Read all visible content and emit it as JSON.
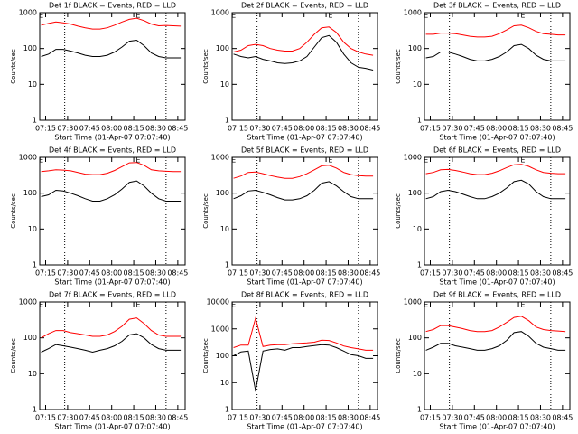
{
  "chart_data": [
    {
      "type": "line",
      "title": "Det 1f BLACK = Events, RED = LLD",
      "xlabel": "Start Time (01-Apr-07 07:07:40)",
      "ylabel": "Counts/sec",
      "log_y": true,
      "x": [
        "07:12",
        "07:17",
        "07:22",
        "07:27",
        "07:32",
        "07:37",
        "07:42",
        "07:47",
        "07:52",
        "07:57",
        "08:02",
        "08:07",
        "08:12",
        "08:17",
        "08:22",
        "08:27",
        "08:32",
        "08:37",
        "08:42",
        "08:47"
      ],
      "xlim": [
        "07:11",
        "08:50"
      ],
      "xticks": [
        "07:15",
        "07:30",
        "07:45",
        "08:00",
        "08:15",
        "08:30",
        "08:45"
      ],
      "ylim": [
        1,
        1000
      ],
      "yticks": [
        1,
        10,
        100,
        1000
      ],
      "vlines": [
        "07:28",
        "08:37"
      ],
      "annotations": [
        {
          "x": "07:12",
          "text": "E"
        },
        {
          "x": "08:18",
          "text": "E"
        }
      ],
      "series": [
        {
          "color": "#000000",
          "values": [
            60,
            70,
            95,
            95,
            85,
            75,
            65,
            60,
            60,
            65,
            80,
            110,
            160,
            170,
            120,
            75,
            60,
            55,
            55,
            55
          ]
        },
        {
          "color": "#ff0000",
          "values": [
            450,
            500,
            550,
            520,
            480,
            420,
            380,
            350,
            350,
            380,
            450,
            550,
            650,
            700,
            600,
            480,
            430,
            440,
            430,
            420
          ]
        }
      ]
    },
    {
      "type": "line",
      "title": "Det 2f BLACK = Events, RED = LLD",
      "xlabel": "Start Time (01-Apr-07 07:07:40)",
      "ylabel": "Counts/sec",
      "log_y": true,
      "x": [
        "07:12",
        "07:17",
        "07:22",
        "07:27",
        "07:32",
        "07:37",
        "07:42",
        "07:47",
        "07:52",
        "07:57",
        "08:02",
        "08:07",
        "08:12",
        "08:17",
        "08:22",
        "08:27",
        "08:32",
        "08:37",
        "08:42",
        "08:47"
      ],
      "xlim": [
        "07:11",
        "08:50"
      ],
      "xticks": [
        "07:15",
        "07:30",
        "07:45",
        "08:00",
        "08:15",
        "08:30",
        "08:45"
      ],
      "ylim": [
        1,
        1000
      ],
      "yticks": [
        1,
        10,
        100,
        1000
      ],
      "vlines": [
        "07:28",
        "08:37"
      ],
      "annotations": [
        {
          "x": "07:12",
          "text": "E"
        },
        {
          "x": "08:18",
          "text": "E"
        }
      ],
      "series": [
        {
          "color": "#000000",
          "values": [
            70,
            60,
            55,
            60,
            50,
            45,
            40,
            38,
            40,
            45,
            60,
            110,
            200,
            230,
            150,
            70,
            40,
            30,
            28,
            25
          ]
        },
        {
          "color": "#ff0000",
          "values": [
            80,
            90,
            120,
            130,
            120,
            100,
            90,
            85,
            85,
            100,
            150,
            250,
            380,
            400,
            280,
            150,
            100,
            80,
            70,
            65
          ]
        }
      ]
    },
    {
      "type": "line",
      "title": "Det 3f BLACK = Events, RED = LLD",
      "xlabel": "Start Time (01-Apr-07 07:07:40)",
      "ylabel": "Counts/sec",
      "log_y": true,
      "x": [
        "07:12",
        "07:17",
        "07:22",
        "07:27",
        "07:32",
        "07:37",
        "07:42",
        "07:47",
        "07:52",
        "07:57",
        "08:02",
        "08:07",
        "08:12",
        "08:17",
        "08:22",
        "08:27",
        "08:32",
        "08:37",
        "08:42",
        "08:47"
      ],
      "xlim": [
        "07:11",
        "08:50"
      ],
      "xticks": [
        "07:15",
        "07:30",
        "07:45",
        "08:00",
        "08:15",
        "08:30",
        "08:45"
      ],
      "ylim": [
        1,
        1000
      ],
      "yticks": [
        1,
        10,
        100,
        1000
      ],
      "vlines": [
        "07:28",
        "08:37"
      ],
      "annotations": [
        {
          "x": "07:12",
          "text": "E"
        },
        {
          "x": "08:18",
          "text": "E"
        }
      ],
      "series": [
        {
          "color": "#000000",
          "values": [
            55,
            60,
            80,
            80,
            70,
            60,
            50,
            45,
            45,
            50,
            60,
            80,
            120,
            130,
            100,
            65,
            50,
            45,
            45,
            45
          ]
        },
        {
          "color": "#ff0000",
          "values": [
            250,
            250,
            270,
            270,
            260,
            240,
            220,
            210,
            210,
            220,
            260,
            330,
            430,
            450,
            380,
            300,
            260,
            250,
            240,
            240
          ]
        }
      ]
    },
    {
      "type": "line",
      "title": "Det 4f BLACK = Events, RED = LLD",
      "xlabel": "Start Time (01-Apr-07 07:07:40)",
      "ylabel": "Counts/sec",
      "log_y": true,
      "x": [
        "07:12",
        "07:17",
        "07:22",
        "07:27",
        "07:32",
        "07:37",
        "07:42",
        "07:47",
        "07:52",
        "07:57",
        "08:02",
        "08:07",
        "08:12",
        "08:17",
        "08:22",
        "08:27",
        "08:32",
        "08:37",
        "08:42",
        "08:47"
      ],
      "xlim": [
        "07:11",
        "08:50"
      ],
      "xticks": [
        "07:15",
        "07:30",
        "07:45",
        "08:00",
        "08:15",
        "08:30",
        "08:45"
      ],
      "ylim": [
        1,
        1000
      ],
      "yticks": [
        1,
        10,
        100,
        1000
      ],
      "vlines": [
        "07:28",
        "08:37"
      ],
      "annotations": [
        {
          "x": "07:12",
          "text": "E"
        },
        {
          "x": "08:18",
          "text": "E"
        }
      ],
      "series": [
        {
          "color": "#000000",
          "values": [
            80,
            90,
            120,
            115,
            100,
            85,
            70,
            60,
            60,
            70,
            90,
            130,
            200,
            220,
            160,
            100,
            70,
            60,
            60,
            60
          ]
        },
        {
          "color": "#ff0000",
          "values": [
            400,
            420,
            450,
            440,
            420,
            380,
            340,
            330,
            330,
            360,
            430,
            550,
            700,
            720,
            600,
            450,
            420,
            410,
            400,
            400
          ]
        }
      ]
    },
    {
      "type": "line",
      "title": "Det 5f BLACK = Events, RED = LLD",
      "xlabel": "Start Time (01-Apr-07 07:07:40)",
      "ylabel": "Counts/sec",
      "log_y": true,
      "x": [
        "07:12",
        "07:17",
        "07:22",
        "07:27",
        "07:32",
        "07:37",
        "07:42",
        "07:47",
        "07:52",
        "07:57",
        "08:02",
        "08:07",
        "08:12",
        "08:17",
        "08:22",
        "08:27",
        "08:32",
        "08:37",
        "08:42",
        "08:47"
      ],
      "xlim": [
        "07:11",
        "08:50"
      ],
      "xticks": [
        "07:15",
        "07:30",
        "07:45",
        "08:00",
        "08:15",
        "08:30",
        "08:45"
      ],
      "ylim": [
        1,
        1000
      ],
      "yticks": [
        1,
        10,
        100,
        1000
      ],
      "vlines": [
        "07:28",
        "08:37"
      ],
      "annotations": [
        {
          "x": "07:12",
          "text": "E"
        },
        {
          "x": "08:18",
          "text": "E"
        }
      ],
      "series": [
        {
          "color": "#000000",
          "values": [
            70,
            85,
            115,
            120,
            105,
            90,
            75,
            65,
            65,
            70,
            85,
            120,
            190,
            210,
            160,
            110,
            80,
            70,
            70,
            70
          ]
        },
        {
          "color": "#ff0000",
          "values": [
            260,
            300,
            380,
            390,
            350,
            310,
            280,
            260,
            260,
            290,
            350,
            450,
            580,
            600,
            500,
            380,
            330,
            310,
            300,
            300
          ]
        }
      ]
    },
    {
      "type": "line",
      "title": "Det 6f BLACK = Events, RED = LLD",
      "xlabel": "Start Time (01-Apr-07 07:07:40)",
      "ylabel": "Counts/sec",
      "log_y": true,
      "x": [
        "07:12",
        "07:17",
        "07:22",
        "07:27",
        "07:32",
        "07:37",
        "07:42",
        "07:47",
        "07:52",
        "07:57",
        "08:02",
        "08:07",
        "08:12",
        "08:17",
        "08:22",
        "08:27",
        "08:32",
        "08:37",
        "08:42",
        "08:47"
      ],
      "xlim": [
        "07:11",
        "08:50"
      ],
      "xticks": [
        "07:15",
        "07:30",
        "07:45",
        "08:00",
        "08:15",
        "08:30",
        "08:45"
      ],
      "ylim": [
        1,
        1000
      ],
      "yticks": [
        1,
        10,
        100,
        1000
      ],
      "vlines": [
        "07:28",
        "08:37"
      ],
      "annotations": [
        {
          "x": "07:12",
          "text": "E"
        },
        {
          "x": "08:18",
          "text": "E"
        }
      ],
      "series": [
        {
          "color": "#000000",
          "values": [
            70,
            80,
            110,
            120,
            110,
            95,
            80,
            70,
            70,
            80,
            100,
            140,
            210,
            230,
            180,
            110,
            80,
            70,
            70,
            70
          ]
        },
        {
          "color": "#ff0000",
          "values": [
            350,
            380,
            450,
            460,
            430,
            390,
            350,
            330,
            330,
            360,
            420,
            520,
            620,
            640,
            560,
            450,
            380,
            360,
            350,
            350
          ]
        }
      ]
    },
    {
      "type": "line",
      "title": "Det 7f BLACK = Events, RED = LLD",
      "xlabel": "Start Time (01-Apr-07 07:07:40)",
      "ylabel": "Counts/sec",
      "log_y": true,
      "x": [
        "07:12",
        "07:17",
        "07:22",
        "07:27",
        "07:32",
        "07:37",
        "07:42",
        "07:47",
        "07:52",
        "07:57",
        "08:02",
        "08:07",
        "08:12",
        "08:17",
        "08:22",
        "08:27",
        "08:32",
        "08:37",
        "08:42",
        "08:47"
      ],
      "xlim": [
        "07:11",
        "08:50"
      ],
      "xticks": [
        "07:15",
        "07:30",
        "07:45",
        "08:00",
        "08:15",
        "08:30",
        "08:45"
      ],
      "ylim": [
        1,
        1000
      ],
      "yticks": [
        1,
        10,
        100,
        1000
      ],
      "vlines": [
        "07:28",
        "08:37"
      ],
      "annotations": [
        {
          "x": "07:12",
          "text": "E"
        },
        {
          "x": "08:18",
          "text": "E"
        }
      ],
      "series": [
        {
          "color": "#000000",
          "values": [
            40,
            50,
            65,
            60,
            55,
            50,
            45,
            40,
            45,
            50,
            60,
            80,
            120,
            130,
            100,
            65,
            50,
            45,
            45,
            45
          ]
        },
        {
          "color": "#ff0000",
          "values": [
            100,
            130,
            160,
            160,
            140,
            130,
            120,
            110,
            110,
            120,
            150,
            210,
            330,
            360,
            250,
            160,
            120,
            110,
            110,
            110
          ]
        }
      ]
    },
    {
      "type": "line",
      "title": "Det 8f BLACK = Events, RED = LLD",
      "xlabel": "Start Time (01-Apr-07 07:07:40)",
      "ylabel": "Counts/sec",
      "log_y": true,
      "x": [
        "07:12",
        "07:17",
        "07:22",
        "07:27",
        "07:32",
        "07:37",
        "07:42",
        "07:47",
        "07:52",
        "07:57",
        "08:02",
        "08:07",
        "08:12",
        "08:17",
        "08:22",
        "08:27",
        "08:32",
        "08:37",
        "08:42",
        "08:47"
      ],
      "xlim": [
        "07:11",
        "08:50"
      ],
      "xticks": [
        "07:15",
        "07:30",
        "07:45",
        "08:00",
        "08:15",
        "08:30",
        "08:45"
      ],
      "ylim": [
        1,
        10000
      ],
      "yticks": [
        1,
        10,
        100,
        1000,
        10000
      ],
      "vlines": [
        "07:28",
        "08:37"
      ],
      "annotations": [
        {
          "x": "07:12",
          "text": "E"
        }
      ],
      "series": [
        {
          "color": "#000000",
          "values": [
            100,
            140,
            150,
            5,
            150,
            170,
            180,
            160,
            200,
            200,
            220,
            240,
            260,
            250,
            200,
            150,
            110,
            100,
            80,
            80
          ]
        },
        {
          "color": "#ff0000",
          "values": [
            200,
            250,
            250,
            2500,
            220,
            250,
            260,
            260,
            280,
            290,
            300,
            320,
            380,
            370,
            300,
            230,
            200,
            180,
            160,
            160
          ]
        }
      ]
    },
    {
      "type": "line",
      "title": "Det 9f BLACK = Events, RED = LLD",
      "xlabel": "Start Time (01-Apr-07 07:07:40)",
      "ylabel": "Counts/sec",
      "log_y": true,
      "x": [
        "07:12",
        "07:17",
        "07:22",
        "07:27",
        "07:32",
        "07:37",
        "07:42",
        "07:47",
        "07:52",
        "07:57",
        "08:02",
        "08:07",
        "08:12",
        "08:17",
        "08:22",
        "08:27",
        "08:32",
        "08:37",
        "08:42",
        "08:47"
      ],
      "xlim": [
        "07:11",
        "08:50"
      ],
      "xticks": [
        "07:15",
        "07:30",
        "07:45",
        "08:00",
        "08:15",
        "08:30",
        "08:45"
      ],
      "ylim": [
        1,
        1000
      ],
      "yticks": [
        1,
        10,
        100,
        1000
      ],
      "vlines": [
        "07:28",
        "08:37"
      ],
      "annotations": [
        {
          "x": "07:12",
          "text": "E"
        },
        {
          "x": "08:18",
          "text": "E"
        }
      ],
      "series": [
        {
          "color": "#000000",
          "values": [
            45,
            55,
            70,
            70,
            60,
            55,
            50,
            45,
            45,
            50,
            60,
            85,
            140,
            150,
            110,
            70,
            55,
            50,
            45,
            45
          ]
        },
        {
          "color": "#ff0000",
          "values": [
            150,
            170,
            220,
            220,
            200,
            180,
            160,
            150,
            150,
            160,
            200,
            270,
            370,
            400,
            300,
            200,
            170,
            160,
            155,
            150
          ]
        }
      ]
    }
  ]
}
